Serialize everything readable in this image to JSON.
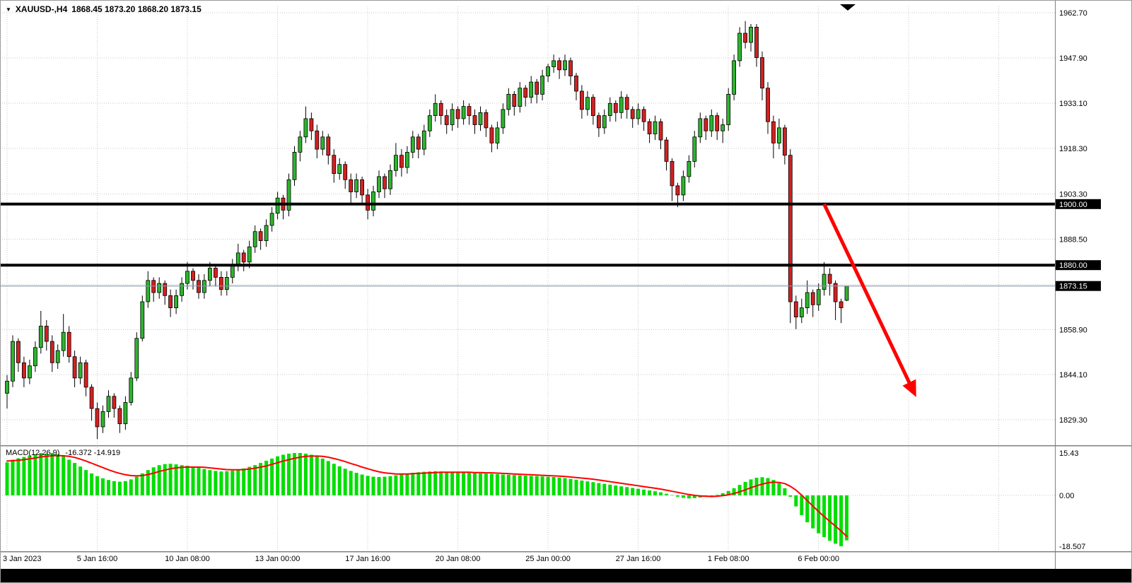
{
  "header": {
    "expand_icon": "▼",
    "symbol_period": "XAUUSD-,H4",
    "ohlc": "1868.45 1873.20 1868.20 1873.15"
  },
  "colors": {
    "background": "#FFFFFF",
    "bull": "#2DB42D",
    "bear": "#D32121",
    "wick": "#000000",
    "grid": "#C9C9C9",
    "separator": "#808080",
    "hline": "#000000",
    "current_price_line": "#8296AB",
    "badge_bg": "#000000",
    "badge_text": "#FFFFFF",
    "macd_histogram": "#00DE00",
    "macd_signal": "#FF0000",
    "arrow": "#FF0000",
    "axis_text": "#000000",
    "scrollbar": "#000000"
  },
  "chart_data": {
    "type": "candlestick",
    "symbol": "XAUUSD-",
    "timeframe": "H4",
    "ohlc_display": {
      "open": "1868.45",
      "high": "1873.20",
      "low": "1868.20",
      "close": "1873.15"
    },
    "price_gridlines": [
      1962.7,
      1947.9,
      1933.1,
      1918.3,
      1903.3,
      1888.5,
      1873.7,
      1858.9,
      1844.1,
      1829.3
    ],
    "price_labels": [
      {
        "value": 1962.7,
        "label": "1962.70"
      },
      {
        "value": 1947.9,
        "label": "1947.90"
      },
      {
        "value": 1933.1,
        "label": "1933.10"
      },
      {
        "value": 1918.3,
        "label": "1918.30"
      },
      {
        "value": 1903.3,
        "label": "1903.30"
      },
      {
        "value": 1888.5,
        "label": "1888.50"
      },
      {
        "value": 1858.9,
        "label": "1858.90"
      },
      {
        "value": 1844.1,
        "label": "1844.10"
      },
      {
        "value": 1829.3,
        "label": "1829.30"
      }
    ],
    "hlines": [
      {
        "price": 1900.0,
        "label": "1900.00"
      },
      {
        "price": 1880.0,
        "label": "1880.00"
      }
    ],
    "current_price": {
      "value": 1873.15,
      "label": "1873.15"
    },
    "time_labels": [
      {
        "index": 0,
        "label": "3 Jan 2023"
      },
      {
        "index": 16,
        "label": "5 Jan 16:00"
      },
      {
        "index": 32,
        "label": "10 Jan 08:00"
      },
      {
        "index": 48,
        "label": "13 Jan 00:00"
      },
      {
        "index": 64,
        "label": "17 Jan 16:00"
      },
      {
        "index": 80,
        "label": "20 Jan 08:00"
      },
      {
        "index": 96,
        "label": "25 Jan 00:00"
      },
      {
        "index": 112,
        "label": "27 Jan 16:00"
      },
      {
        "index": 128,
        "label": "1 Feb 08:00"
      },
      {
        "index": 144,
        "label": "6 Feb 00:00"
      }
    ],
    "candles": [
      [
        1838,
        1844,
        1833,
        1842
      ],
      [
        1842,
        1857,
        1840,
        1855
      ],
      [
        1855,
        1856,
        1845,
        1848
      ],
      [
        1848,
        1850,
        1840,
        1843
      ],
      [
        1843,
        1849,
        1841,
        1847
      ],
      [
        1847,
        1855,
        1845,
        1853
      ],
      [
        1853,
        1865,
        1851,
        1860
      ],
      [
        1860,
        1862,
        1852,
        1855
      ],
      [
        1855,
        1857,
        1845,
        1848
      ],
      [
        1848,
        1854,
        1846,
        1852
      ],
      [
        1852,
        1864,
        1850,
        1858
      ],
      [
        1858,
        1860,
        1848,
        1850
      ],
      [
        1850,
        1852,
        1840,
        1843
      ],
      [
        1843,
        1850,
        1841,
        1848
      ],
      [
        1848,
        1849,
        1837,
        1840
      ],
      [
        1840,
        1841,
        1829,
        1833
      ],
      [
        1833,
        1835,
        1823,
        1827
      ],
      [
        1827,
        1834,
        1825,
        1832
      ],
      [
        1832,
        1839,
        1830,
        1837
      ],
      [
        1837,
        1838,
        1830,
        1833
      ],
      [
        1833,
        1834,
        1825,
        1828
      ],
      [
        1828,
        1837,
        1826,
        1835
      ],
      [
        1835,
        1845,
        1834,
        1843
      ],
      [
        1843,
        1858,
        1842,
        1856
      ],
      [
        1856,
        1870,
        1855,
        1868
      ],
      [
        1868,
        1878,
        1866,
        1875
      ],
      [
        1875,
        1876,
        1868,
        1871
      ],
      [
        1871,
        1876,
        1869,
        1874
      ],
      [
        1874,
        1875,
        1867,
        1870
      ],
      [
        1870,
        1872,
        1863,
        1866
      ],
      [
        1866,
        1872,
        1864,
        1870
      ],
      [
        1870,
        1876,
        1868,
        1874
      ],
      [
        1874,
        1881,
        1872,
        1878
      ],
      [
        1878,
        1879,
        1872,
        1875
      ],
      [
        1875,
        1877,
        1869,
        1871
      ],
      [
        1871,
        1877,
        1869,
        1875
      ],
      [
        1875,
        1881,
        1873,
        1879
      ],
      [
        1879,
        1880,
        1873,
        1876
      ],
      [
        1876,
        1878,
        1870,
        1872
      ],
      [
        1872,
        1878,
        1870,
        1876
      ],
      [
        1876,
        1882,
        1874,
        1880
      ],
      [
        1880,
        1887,
        1878,
        1884
      ],
      [
        1884,
        1885,
        1878,
        1881
      ],
      [
        1881,
        1888,
        1879,
        1886
      ],
      [
        1886,
        1893,
        1884,
        1891
      ],
      [
        1891,
        1892,
        1885,
        1888
      ],
      [
        1888,
        1895,
        1886,
        1893
      ],
      [
        1893,
        1899,
        1891,
        1897
      ],
      [
        1897,
        1904,
        1895,
        1902
      ],
      [
        1902,
        1903,
        1895,
        1898
      ],
      [
        1898,
        1910,
        1896,
        1908
      ],
      [
        1908,
        1919,
        1906,
        1917
      ],
      [
        1917,
        1924,
        1914,
        1922
      ],
      [
        1922,
        1932,
        1920,
        1928
      ],
      [
        1928,
        1930,
        1921,
        1924
      ],
      [
        1924,
        1926,
        1915,
        1918
      ],
      [
        1918,
        1924,
        1916,
        1922
      ],
      [
        1922,
        1923,
        1913,
        1916
      ],
      [
        1916,
        1918,
        1907,
        1910
      ],
      [
        1910,
        1915,
        1908,
        1913
      ],
      [
        1913,
        1914,
        1905,
        1908
      ],
      [
        1908,
        1910,
        1900,
        1904
      ],
      [
        1904,
        1910,
        1902,
        1908
      ],
      [
        1908,
        1909,
        1900,
        1903
      ],
      [
        1903,
        1905,
        1895,
        1898
      ],
      [
        1898,
        1906,
        1896,
        1904
      ],
      [
        1904,
        1911,
        1902,
        1909
      ],
      [
        1909,
        1910,
        1902,
        1905
      ],
      [
        1905,
        1913,
        1903,
        1911
      ],
      [
        1911,
        1920,
        1909,
        1916
      ],
      [
        1916,
        1918,
        1909,
        1912
      ],
      [
        1912,
        1919,
        1910,
        1917
      ],
      [
        1917,
        1924,
        1915,
        1922
      ],
      [
        1922,
        1923,
        1915,
        1918
      ],
      [
        1918,
        1926,
        1916,
        1924
      ],
      [
        1924,
        1931,
        1922,
        1929
      ],
      [
        1929,
        1936,
        1927,
        1933
      ],
      [
        1933,
        1934,
        1926,
        1929
      ],
      [
        1929,
        1931,
        1923,
        1926
      ],
      [
        1926,
        1933,
        1924,
        1931
      ],
      [
        1931,
        1932,
        1925,
        1928
      ],
      [
        1928,
        1934,
        1926,
        1932
      ],
      [
        1932,
        1933,
        1926,
        1929
      ],
      [
        1929,
        1931,
        1923,
        1926
      ],
      [
        1926,
        1932,
        1924,
        1930
      ],
      [
        1930,
        1931,
        1922,
        1925
      ],
      [
        1925,
        1926,
        1917,
        1920
      ],
      [
        1920,
        1927,
        1918,
        1925
      ],
      [
        1925,
        1933,
        1923,
        1931
      ],
      [
        1931,
        1938,
        1929,
        1936
      ],
      [
        1936,
        1937,
        1929,
        1932
      ],
      [
        1932,
        1940,
        1930,
        1938
      ],
      [
        1938,
        1939,
        1932,
        1935
      ],
      [
        1935,
        1942,
        1933,
        1940
      ],
      [
        1940,
        1941,
        1933,
        1936
      ],
      [
        1936,
        1944,
        1934,
        1942
      ],
      [
        1942,
        1946,
        1940,
        1945
      ],
      [
        1945,
        1949,
        1943,
        1947
      ],
      [
        1947,
        1948,
        1941,
        1944
      ],
      [
        1944,
        1949,
        1942,
        1947
      ],
      [
        1947,
        1948,
        1939,
        1942
      ],
      [
        1942,
        1943,
        1934,
        1937
      ],
      [
        1937,
        1939,
        1928,
        1931
      ],
      [
        1931,
        1937,
        1929,
        1935
      ],
      [
        1935,
        1936,
        1926,
        1929
      ],
      [
        1929,
        1930,
        1922,
        1925
      ],
      [
        1925,
        1931,
        1923,
        1929
      ],
      [
        1929,
        1935,
        1927,
        1933
      ],
      [
        1933,
        1934,
        1927,
        1930
      ],
      [
        1930,
        1937,
        1928,
        1935
      ],
      [
        1935,
        1936,
        1928,
        1931
      ],
      [
        1931,
        1932,
        1925,
        1928
      ],
      [
        1928,
        1933,
        1926,
        1931
      ],
      [
        1931,
        1932,
        1924,
        1927
      ],
      [
        1927,
        1928,
        1920,
        1923
      ],
      [
        1923,
        1929,
        1921,
        1927
      ],
      [
        1927,
        1928,
        1918,
        1921
      ],
      [
        1921,
        1922,
        1911,
        1914
      ],
      [
        1914,
        1915,
        1901,
        1906
      ],
      [
        1906,
        1907,
        1899,
        1903
      ],
      [
        1903,
        1911,
        1901,
        1909
      ],
      [
        1909,
        1916,
        1907,
        1914
      ],
      [
        1914,
        1924,
        1912,
        1922
      ],
      [
        1922,
        1930,
        1920,
        1928
      ],
      [
        1928,
        1929,
        1921,
        1924
      ],
      [
        1924,
        1931,
        1922,
        1929
      ],
      [
        1929,
        1930,
        1921,
        1924
      ],
      [
        1924,
        1928,
        1920,
        1926
      ],
      [
        1926,
        1938,
        1924,
        1936
      ],
      [
        1936,
        1949,
        1934,
        1947
      ],
      [
        1947,
        1958,
        1945,
        1956
      ],
      [
        1956,
        1960,
        1951,
        1953
      ],
      [
        1953,
        1959,
        1950,
        1958
      ],
      [
        1958,
        1959,
        1945,
        1948
      ],
      [
        1948,
        1950,
        1934,
        1938
      ],
      [
        1938,
        1940,
        1923,
        1927
      ],
      [
        1927,
        1929,
        1915,
        1920
      ],
      [
        1920,
        1928,
        1918,
        1925
      ],
      [
        1925,
        1926,
        1913,
        1916
      ],
      [
        1916,
        1918,
        1861,
        1868
      ],
      [
        1868,
        1870,
        1859,
        1863
      ],
      [
        1863,
        1869,
        1861,
        1866
      ],
      [
        1866,
        1875,
        1864,
        1871
      ],
      [
        1871,
        1872,
        1863,
        1867
      ],
      [
        1867,
        1874,
        1865,
        1872
      ],
      [
        1872,
        1881,
        1870,
        1877
      ],
      [
        1877,
        1879,
        1870,
        1874
      ],
      [
        1874,
        1875,
        1862,
        1868
      ],
      [
        1868,
        1869,
        1861,
        1866
      ],
      [
        1868.45,
        1873.2,
        1868.2,
        1873.15
      ]
    ],
    "macd": {
      "label": "MACD(12,26,9)",
      "value_text": "-16.372 -14.919",
      "axis_labels": [
        {
          "value": 15.43,
          "label": "15.43"
        },
        {
          "value": 0,
          "label": "0.00"
        },
        {
          "value": -18.507,
          "label": "-18.507"
        }
      ],
      "histogram": [
        12.0,
        13.0,
        13.5,
        14.0,
        14.5,
        15.0,
        15.4,
        15.2,
        15.4,
        15.0,
        14.2,
        13.0,
        11.8,
        10.5,
        9.2,
        8.0,
        7.0,
        6.2,
        5.6,
        5.2,
        5.0,
        5.2,
        5.8,
        6.8,
        8.0,
        9.2,
        10.2,
        11.0,
        11.4,
        11.5,
        11.3,
        11.0,
        10.8,
        10.4,
        10.0,
        9.6,
        9.2,
        8.9,
        8.7,
        8.8,
        9.0,
        9.4,
        9.8,
        10.4,
        11.0,
        11.8,
        12.6,
        13.4,
        14.2,
        14.8,
        15.2,
        15.4,
        15.43,
        15.2,
        14.8,
        14.2,
        13.4,
        12.5,
        11.5,
        10.6,
        9.7,
        8.9,
        8.2,
        7.6,
        7.1,
        6.8,
        6.7,
        6.8,
        7.0,
        7.3,
        7.6,
        7.9,
        8.2,
        8.4,
        8.6,
        8.7,
        8.8,
        8.7,
        8.6,
        8.5,
        8.4,
        8.3,
        8.2,
        8.1,
        8.0,
        7.9,
        7.8,
        7.7,
        7.6,
        7.5,
        7.4,
        7.3,
        7.2,
        7.1,
        7.0,
        6.9,
        6.8,
        6.7,
        6.5,
        6.3,
        6.0,
        5.7,
        5.4,
        5.1,
        4.8,
        4.5,
        4.2,
        3.9,
        3.6,
        3.3,
        3.0,
        2.7,
        2.4,
        2.1,
        1.8,
        1.5,
        1.1,
        0.6,
        0.1,
        -0.5,
        -0.9,
        -1.1,
        -1.0,
        -0.8,
        -0.5,
        -0.2,
        0.2,
        0.8,
        1.6,
        2.6,
        3.8,
        4.9,
        5.8,
        6.4,
        6.6,
        6.3,
        5.6,
        4.4,
        2.6,
        -0.5,
        -4.0,
        -7.2,
        -9.8,
        -12.0,
        -13.8,
        -15.2,
        -16.5,
        -17.6,
        -18.507,
        -16.372
      ],
      "signal": [
        12.5,
        12.6,
        12.8,
        13.0,
        13.3,
        13.6,
        14.0,
        14.2,
        14.4,
        14.5,
        14.4,
        14.2,
        13.8,
        13.2,
        12.5,
        11.7,
        10.9,
        10.1,
        9.3,
        8.6,
        8.0,
        7.5,
        7.2,
        7.1,
        7.2,
        7.6,
        8.1,
        8.7,
        9.2,
        9.7,
        10.0,
        10.2,
        10.3,
        10.3,
        10.3,
        10.2,
        10.0,
        9.8,
        9.6,
        9.4,
        9.3,
        9.3,
        9.4,
        9.6,
        9.9,
        10.3,
        10.7,
        11.3,
        11.9,
        12.5,
        13.0,
        13.5,
        13.9,
        14.2,
        14.3,
        14.3,
        14.2,
        13.9,
        13.4,
        12.9,
        12.3,
        11.6,
        11.0,
        10.3,
        9.7,
        9.1,
        8.6,
        8.2,
        8.0,
        7.8,
        7.8,
        7.8,
        7.9,
        8.0,
        8.1,
        8.2,
        8.3,
        8.4,
        8.4,
        8.4,
        8.4,
        8.4,
        8.4,
        8.3,
        8.3,
        8.2,
        8.2,
        8.1,
        8.0,
        7.9,
        7.8,
        7.7,
        7.6,
        7.5,
        7.4,
        7.3,
        7.2,
        7.1,
        7.0,
        6.9,
        6.7,
        6.5,
        6.3,
        6.1,
        5.9,
        5.6,
        5.3,
        5.0,
        4.7,
        4.4,
        4.1,
        3.8,
        3.5,
        3.2,
        2.9,
        2.6,
        2.3,
        1.9,
        1.5,
        1.1,
        0.7,
        0.3,
        0.0,
        -0.2,
        -0.3,
        -0.4,
        -0.3,
        -0.1,
        0.2,
        0.7,
        1.3,
        2.0,
        2.8,
        3.5,
        4.1,
        4.6,
        4.8,
        4.7,
        4.3,
        3.3,
        1.9,
        0.1,
        -1.9,
        -3.9,
        -5.9,
        -7.7,
        -9.5,
        -11.2,
        -13.0,
        -14.919
      ]
    },
    "arrow": {
      "from": {
        "index": 145,
        "price": 1900.0
      },
      "to": {
        "index": 161,
        "price": 1838.0
      }
    }
  }
}
